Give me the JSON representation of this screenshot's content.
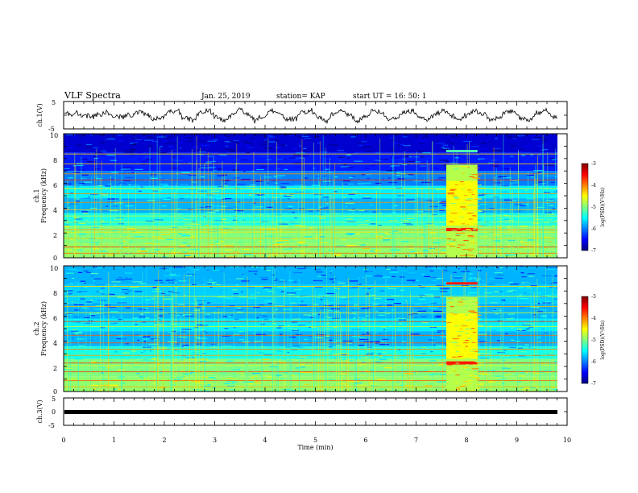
{
  "header": {
    "title": "VLF Spectra",
    "date": "Jan. 25, 2019",
    "station": "station= KAP",
    "start": "start UT = 16: 50: 1"
  },
  "chart_data": [
    {
      "type": "line",
      "panel": "ch1-waveform",
      "ylabel": "ch.1(V)",
      "ylim": [
        -5,
        5
      ],
      "yticks": [
        "5",
        "-5"
      ],
      "xlim": [
        0,
        10
      ]
    },
    {
      "type": "heatmap",
      "panel": "ch1-spectrogram",
      "ylabel_top": "ch.1",
      "ylabel": "Frequency (kHz)",
      "ylim": [
        0,
        10
      ],
      "yticks": [
        "0",
        "2",
        "4",
        "6",
        "8",
        "10"
      ],
      "xlim": [
        0,
        10
      ],
      "colorbar": {
        "label": "log(PSD)(V²/Hz)",
        "range": [
          -7,
          -3
        ],
        "ticks": [
          "-3",
          "-4",
          "-5",
          "-6",
          "-7"
        ]
      }
    },
    {
      "type": "heatmap",
      "panel": "ch2-spectrogram",
      "ylabel_top": "ch.2",
      "ylabel": "Frequency (kHz)",
      "ylim": [
        0,
        10
      ],
      "yticks": [
        "0",
        "2",
        "4",
        "6",
        "8",
        "10"
      ],
      "xlim": [
        0,
        10
      ],
      "colorbar": {
        "label": "log(PSD)(V²/Hz)",
        "range": [
          -7,
          -3
        ],
        "ticks": [
          "-3",
          "-4",
          "-5",
          "-6",
          "-7"
        ]
      }
    },
    {
      "type": "line",
      "panel": "ch3-waveform",
      "ylabel": "ch.3(V)",
      "ylim": [
        -5,
        5
      ],
      "yticks": [
        "5",
        "0",
        "-5"
      ],
      "xlim": [
        0,
        10
      ],
      "xlabel": "Time (min)",
      "xticks": [
        "0",
        "1",
        "2",
        "3",
        "4",
        "5",
        "6",
        "7",
        "8",
        "9",
        "10"
      ]
    }
  ]
}
